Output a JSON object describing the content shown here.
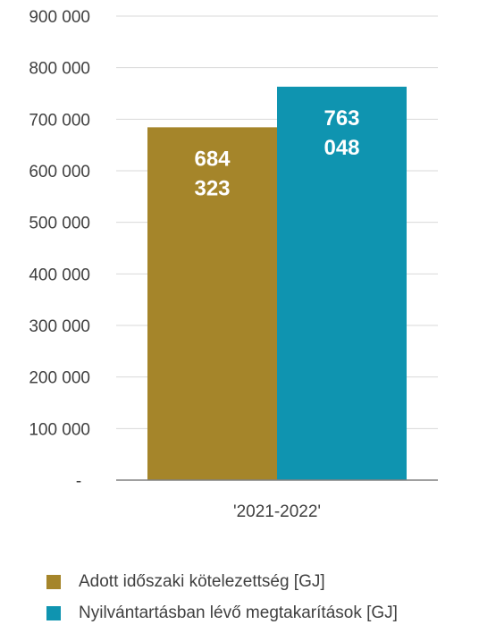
{
  "chart_data": {
    "type": "bar",
    "categories": [
      "'2021-2022'"
    ],
    "series": [
      {
        "name": "Adott időszaki kötelezettség [GJ]",
        "values": [
          684323
        ],
        "label_lines": [
          "684",
          "323"
        ],
        "color": "#a5852a"
      },
      {
        "name": "Nyilvántartásban lévő megtakarítások [GJ]",
        "values": [
          763048
        ],
        "label_lines": [
          "763",
          "048"
        ],
        "color": "#0f94b0"
      }
    ],
    "ylim": [
      0,
      900000
    ],
    "ytick_labels": [
      "-",
      "100 000",
      "200 000",
      "300 000",
      "400 000",
      "500 000",
      "600 000",
      "700 000",
      "800 000",
      "900 000"
    ],
    "title": "",
    "xlabel": "",
    "ylabel": "",
    "grid": true,
    "legend_position": "bottom"
  }
}
